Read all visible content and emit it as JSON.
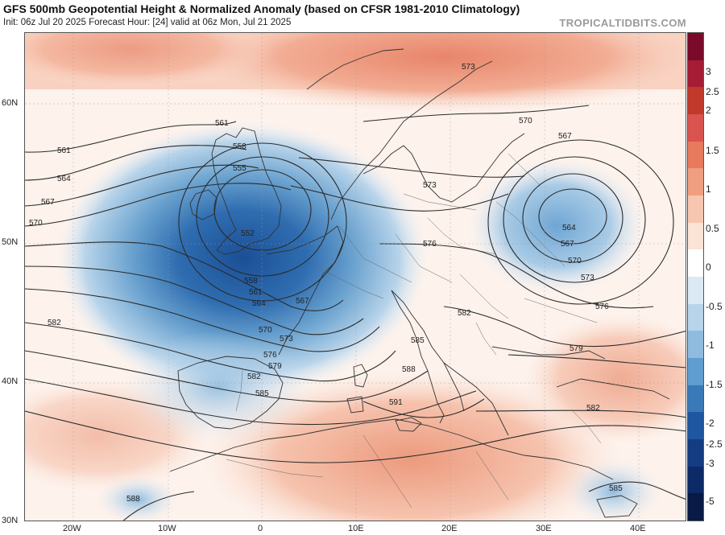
{
  "header": {
    "title": "GFS 500mb Geopotential Height & Normalized Anomaly (based on CFSR 1981-2010 Climatology)",
    "subtitle": "Init: 06z Jul 20 2025   Forecast Hour: [24]   valid at 06z Mon, Jul 21 2025",
    "credit": "TROPICALTIDBITS.COM"
  },
  "colorbar": {
    "labels": [
      "3",
      "2.5",
      "2",
      "1.5",
      "1",
      "0.5",
      "0",
      "-0.5",
      "-1",
      "-1.5",
      "-2",
      "-2.5",
      "-3",
      "-5"
    ],
    "colors": [
      "#7a0a2a",
      "#a51c34",
      "#c0392b",
      "#d9534f",
      "#e77a5c",
      "#f09e80",
      "#f7c6b0",
      "#fbe3d6",
      "#ffffff",
      "#dbe9f4",
      "#b8d4ea",
      "#8fbbdf",
      "#5f9ccf",
      "#3a79b8",
      "#1f56a0",
      "#143c83",
      "#0c2a66",
      "#081a45"
    ]
  },
  "axes": {
    "lat_labels": [
      "60N",
      "50N",
      "40N",
      "30N"
    ],
    "lon_labels": [
      "20W",
      "10W",
      "0",
      "10E",
      "20E",
      "30E",
      "40E"
    ]
  },
  "contours": {
    "left_labels": [
      "561",
      "564",
      "567",
      "570"
    ],
    "west_labels": [
      "582",
      "588"
    ],
    "low_west": [
      "561",
      "558",
      "555",
      "552",
      "558",
      "561",
      "564",
      "567",
      "570",
      "573",
      "576",
      "579",
      "582",
      "585"
    ],
    "low_east": [
      "570",
      "567",
      "564",
      "567",
      "570",
      "573",
      "576"
    ],
    "north": [
      "573"
    ],
    "central": [
      "573",
      "576",
      "582",
      "585",
      "588",
      "591",
      "579",
      "582",
      "585"
    ]
  }
}
